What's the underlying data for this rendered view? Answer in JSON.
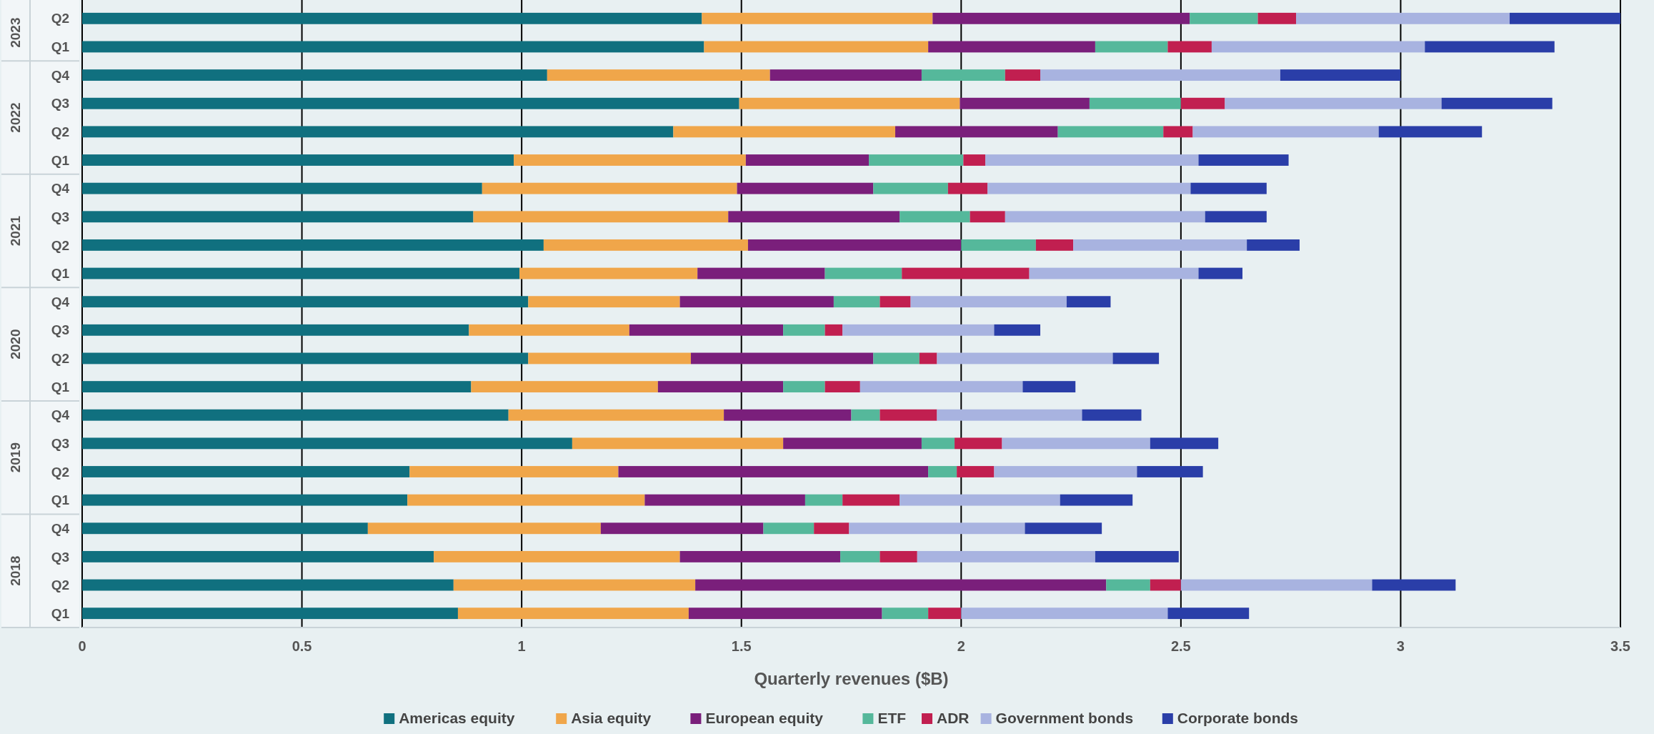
{
  "chart_data": {
    "type": "bar",
    "orientation": "horizontal",
    "stacked": true,
    "xlabel": "Quarterly revenues ($B)",
    "categories": [
      "Q2",
      "Q1",
      "Q4",
      "Q3",
      "Q2",
      "Q1",
      "Q4",
      "Q3",
      "Q2",
      "Q1",
      "Q4",
      "Q3",
      "Q2",
      "Q1",
      "Q4",
      "Q3",
      "Q2",
      "Q1",
      "Q4",
      "Q3",
      "Q2",
      "Q1"
    ],
    "annotations": [
      "2023",
      "2022",
      "2021",
      "2020",
      "2019",
      "2018"
    ],
    "xlim": [
      0,
      3.5
    ],
    "xticks": [
      0,
      0.5,
      1,
      1.5,
      2,
      2.5,
      3,
      3.5
    ],
    "grid": "x",
    "legend": "bottom",
    "series": [
      {
        "name": "Americas equity",
        "color": "#10707f",
        "values": [
          1.41,
          1.415,
          1.058,
          1.495,
          1.345,
          0.982,
          0.91,
          0.89,
          1.05,
          0.995,
          1.015,
          0.88,
          1.015,
          0.885,
          0.97,
          1.115,
          0.745,
          0.74,
          0.65,
          0.8,
          0.845,
          0.855
        ]
      },
      {
        "name": "Asia equity",
        "color": "#f0a64a",
        "values": [
          0.525,
          0.51,
          0.507,
          0.502,
          0.505,
          0.528,
          0.58,
          0.58,
          0.465,
          0.405,
          0.345,
          0.365,
          0.37,
          0.425,
          0.49,
          0.48,
          0.475,
          0.54,
          0.53,
          0.56,
          0.55,
          0.525
        ]
      },
      {
        "name": "European equity",
        "color": "#7a1f7b",
        "values": [
          0.585,
          0.38,
          0.345,
          0.295,
          0.37,
          0.28,
          0.31,
          0.39,
          0.485,
          0.29,
          0.35,
          0.35,
          0.415,
          0.285,
          0.29,
          0.315,
          0.705,
          0.365,
          0.37,
          0.365,
          0.935,
          0.44
        ]
      },
      {
        "name": "ETF",
        "color": "#55b89b",
        "values": [
          0.155,
          0.165,
          0.19,
          0.208,
          0.24,
          0.215,
          0.17,
          0.16,
          0.17,
          0.175,
          0.105,
          0.095,
          0.105,
          0.095,
          0.065,
          0.075,
          0.065,
          0.085,
          0.115,
          0.09,
          0.1,
          0.105
        ]
      },
      {
        "name": "ADR",
        "color": "#c11f50",
        "values": [
          0.087,
          0.1,
          0.08,
          0.1,
          0.067,
          0.05,
          0.09,
          0.08,
          0.085,
          0.29,
          0.07,
          0.04,
          0.04,
          0.08,
          0.13,
          0.108,
          0.085,
          0.13,
          0.08,
          0.085,
          0.07,
          0.075
        ]
      },
      {
        "name": "Government bonds",
        "color": "#a8b3e0",
        "values": [
          0.486,
          0.485,
          0.546,
          0.493,
          0.423,
          0.485,
          0.462,
          0.455,
          0.395,
          0.385,
          0.355,
          0.345,
          0.4,
          0.37,
          0.33,
          0.337,
          0.325,
          0.365,
          0.4,
          0.405,
          0.435,
          0.47
        ]
      },
      {
        "name": "Corporate bonds",
        "color": "#2a3ea8",
        "values": [
          0.252,
          0.295,
          0.274,
          0.252,
          0.235,
          0.205,
          0.173,
          0.14,
          0.12,
          0.1,
          0.1,
          0.105,
          0.105,
          0.12,
          0.135,
          0.155,
          0.15,
          0.165,
          0.175,
          0.19,
          0.19,
          0.185
        ]
      }
    ]
  }
}
